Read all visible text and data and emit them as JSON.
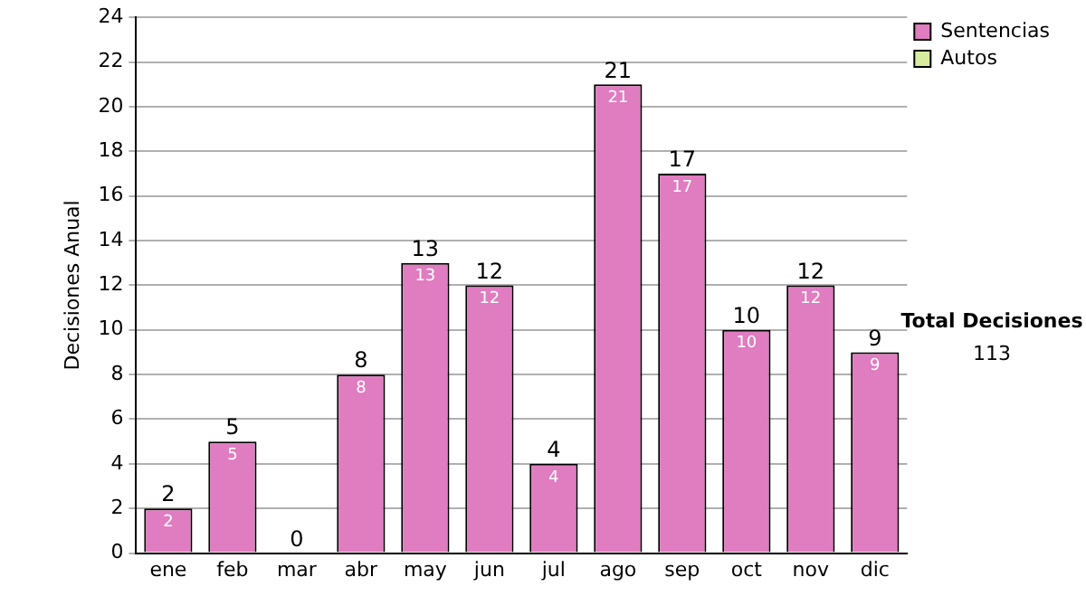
{
  "chart_data": {
    "type": "bar",
    "ylabel": "Decisiones Anual",
    "categories": [
      "ene",
      "feb",
      "mar",
      "abr",
      "may",
      "jun",
      "jul",
      "ago",
      "sep",
      "oct",
      "nov",
      "dic"
    ],
    "stacked": true,
    "series": [
      {
        "name": "Sentencias",
        "color": "#e07cc0",
        "values": [
          2,
          5,
          0,
          8,
          13,
          12,
          4,
          21,
          17,
          10,
          12,
          9
        ],
        "value_labels": [
          "2",
          "5",
          null,
          "8",
          "13",
          "12",
          "4",
          "21",
          "17",
          "10",
          "12",
          "9"
        ]
      },
      {
        "name": "Autos",
        "color": "#d8eca0",
        "values": [
          0,
          0,
          0,
          0,
          0,
          0,
          0,
          0,
          0,
          0,
          0,
          0
        ]
      }
    ],
    "totals": [
      "2",
      "5",
      "0",
      "8",
      "13",
      "12",
      "4",
      "21",
      "17",
      "10",
      "12",
      "9"
    ],
    "ylim": [
      0,
      24
    ],
    "yticks": [
      0,
      2,
      4,
      6,
      8,
      10,
      12,
      14,
      16,
      18,
      20,
      22,
      24
    ],
    "grid": "y",
    "legend": "top right",
    "annotations": [
      "Total Decisiones",
      "113"
    ]
  }
}
